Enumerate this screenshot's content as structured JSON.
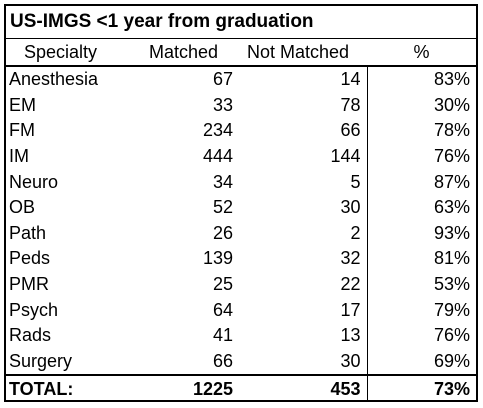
{
  "table": {
    "title": "US-IMGS <1 year from graduation",
    "headers": [
      "Specialty",
      "Matched",
      "Not Matched",
      "%"
    ],
    "rows": [
      [
        "Anesthesia",
        "67",
        "14",
        "83%"
      ],
      [
        "EM",
        "33",
        "78",
        "30%"
      ],
      [
        "FM",
        "234",
        "66",
        "78%"
      ],
      [
        "IM",
        "444",
        "144",
        "76%"
      ],
      [
        "Neuro",
        "34",
        "5",
        "87%"
      ],
      [
        "OB",
        "52",
        "30",
        "63%"
      ],
      [
        "Path",
        "26",
        "2",
        "93%"
      ],
      [
        "Peds",
        "139",
        "32",
        "81%"
      ],
      [
        "PMR",
        "25",
        "22",
        "53%"
      ],
      [
        "Psych",
        "64",
        "17",
        "79%"
      ],
      [
        "Rads",
        "41",
        "13",
        "76%"
      ],
      [
        "Surgery",
        "66",
        "30",
        "69%"
      ]
    ],
    "total": [
      "TOTAL:",
      "1225",
      "453",
      "73%"
    ]
  }
}
